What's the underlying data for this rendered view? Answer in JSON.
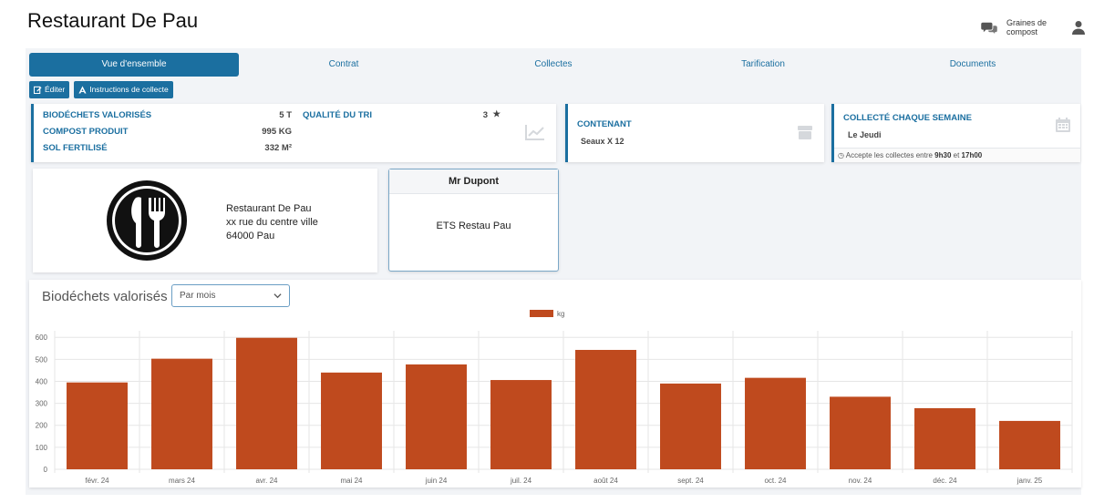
{
  "header": {
    "title": "Restaurant De Pau",
    "brand_label": "Graines de compost"
  },
  "tabs": [
    {
      "label": "Vue d'ensemble",
      "active": true
    },
    {
      "label": "Contrat",
      "active": false
    },
    {
      "label": "Collectes",
      "active": false
    },
    {
      "label": "Tarification",
      "active": false
    },
    {
      "label": "Documents",
      "active": false
    }
  ],
  "toolbar": {
    "edit_label": "Éditer",
    "instructions_label": "Instructions de collecte"
  },
  "stats": {
    "biodechets_label": "BIODÉCHETS VALORISÉS",
    "biodechets_value": "5 T",
    "compost_label": "COMPOST PRODUIT",
    "compost_value": "995 KG",
    "sol_label": "SOL FERTILISÉ",
    "sol_value": "332 M²",
    "qualite_label": "QUALITÉ DU TRI",
    "qualite_value": "3"
  },
  "contenant": {
    "title": "CONTENANT",
    "value": "Seaux X 12"
  },
  "collecte": {
    "title": "COLLECTÉ CHAQUE SEMAINE",
    "day": "Le Jeudi",
    "footer_prefix": "Accepte les collectes entre",
    "time_start": "9h30",
    "footer_mid": "et",
    "time_end": "17h00"
  },
  "address": {
    "line1": "Restaurant De Pau",
    "line2": "xx rue du centre ville",
    "line3": "64000 Pau"
  },
  "contact": {
    "name": "Mr Dupont",
    "company": "ETS Restau Pau"
  },
  "chart_section": {
    "title": "Biodéchets valorisés",
    "period_select": "Par mois"
  },
  "colors": {
    "accent": "#1b6fa0",
    "bar": "#bf4a1e"
  },
  "chart_data": {
    "type": "bar",
    "categories": [
      "févr. 24",
      "mars 24",
      "avr. 24",
      "mai 24",
      "juin 24",
      "juil. 24",
      "août 24",
      "sept. 24",
      "oct. 24",
      "nov. 24",
      "déc. 24",
      "janv. 25"
    ],
    "series": [
      {
        "name": "kg",
        "values": [
          395,
          503,
          598,
          440,
          477,
          406,
          543,
          390,
          416,
          330,
          278,
          220
        ]
      }
    ],
    "yticks": [
      0,
      100,
      200,
      300,
      400,
      500,
      600
    ],
    "ylim": [
      0,
      630
    ],
    "grid": true,
    "legend": "top-center"
  }
}
